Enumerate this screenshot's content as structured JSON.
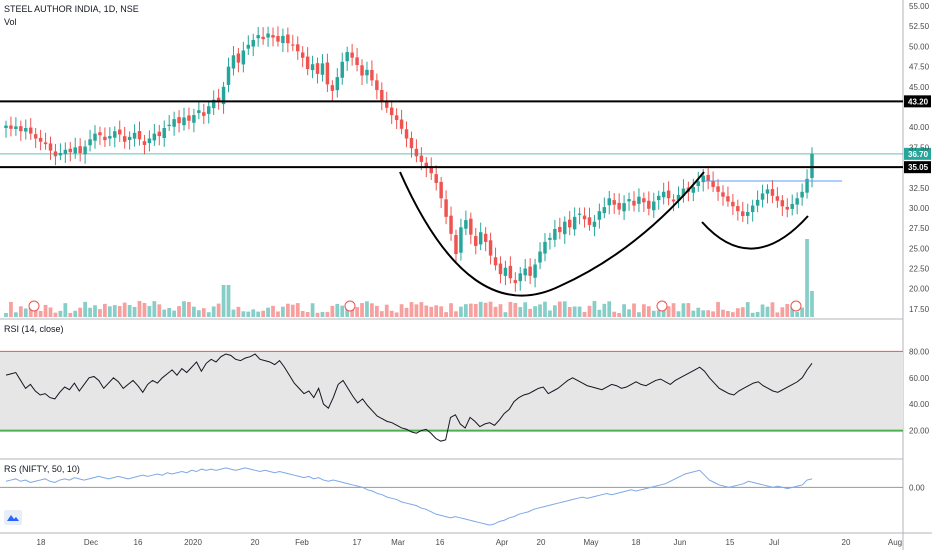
{
  "header": {
    "title": "STEEL AUTHOR INDIA, 1D, NSE",
    "vol_label": "Vol"
  },
  "chart_data": {
    "type": "candlestick",
    "price_axis": {
      "range": [
        16.5,
        55.5
      ],
      "ticks": [
        "55.00",
        "52.50",
        "50.00",
        "47.50",
        "45.00",
        "42.50",
        "40.00",
        "37.50",
        "35.00",
        "32.50",
        "30.00",
        "27.50",
        "25.00",
        "22.50",
        "20.00",
        "17.50"
      ],
      "tick_values": [
        55,
        52.5,
        50,
        47.5,
        45,
        42.5,
        40,
        37.5,
        35,
        32.5,
        30,
        27.5,
        25,
        22.5,
        20,
        17.5
      ]
    },
    "x_axis_ticks": [
      "18",
      "Dec",
      "16",
      "2020",
      "20",
      "Feb",
      "17",
      "Mar",
      "16",
      "Apr",
      "20",
      "May",
      "18",
      "Jun",
      "15",
      "Jul",
      "20",
      "Aug"
    ],
    "horizontal_levels": [
      {
        "value": 43.2,
        "label": "43.20",
        "color": "#000000"
      },
      {
        "value": 35.05,
        "label": "35.05",
        "color": "#000000"
      }
    ],
    "last_price": {
      "value": 36.7,
      "label": "36.70",
      "color": "#26a69a"
    },
    "closes": [
      40.2,
      39.8,
      40.1,
      39.5,
      39.9,
      39.2,
      38.6,
      38.2,
      37.9,
      37.1,
      36.4,
      36.8,
      37.2,
      36.9,
      37.5,
      36.8,
      37.6,
      38.5,
      39.2,
      39.0,
      38.4,
      38.9,
      39.5,
      39.1,
      38.2,
      38.8,
      39.3,
      38.5,
      37.8,
      38.6,
      39.2,
      38.9,
      39.9,
      40.3,
      41.0,
      40.5,
      41.2,
      40.8,
      41.5,
      42.1,
      41.4,
      42.6,
      43.4,
      43.1,
      45.0,
      47.5,
      48.9,
      48.0,
      49.5,
      50.2,
      50.8,
      51.4,
      50.9,
      51.6,
      51.1,
      50.6,
      51.3,
      50.4,
      50.1,
      49.4,
      48.6,
      47.2,
      47.8,
      46.6,
      47.9,
      45.3,
      44.5,
      46.2,
      48.1,
      49.3,
      48.6,
      47.7,
      46.4,
      47.1,
      45.8,
      44.6,
      43.2,
      42.4,
      41.5,
      40.9,
      39.8,
      38.6,
      37.4,
      36.4,
      35.7,
      35.0,
      34.3,
      33.1,
      31.2,
      28.9,
      26.8,
      24.3,
      27.6,
      28.5,
      26.7,
      25.3,
      27.0,
      25.8,
      24.1,
      22.9,
      21.8,
      22.6,
      21.3,
      20.7,
      21.9,
      22.5,
      21.6,
      23.0,
      24.6,
      25.8,
      26.3,
      27.4,
      27.0,
      28.3,
      27.6,
      28.9,
      29.3,
      28.6,
      27.9,
      28.3,
      29.6,
      30.1,
      31.2,
      30.4,
      29.8,
      30.6,
      31.1,
      30.3,
      31.4,
      30.7,
      29.9,
      30.8,
      31.5,
      32.0,
      31.2,
      30.8,
      31.6,
      32.4,
      32.0,
      32.6,
      33.3,
      34.0,
      33.4,
      32.6,
      32.0,
      31.4,
      30.8,
      30.2,
      29.6,
      29.0,
      29.5,
      30.3,
      31.0,
      31.8,
      32.3,
      31.5,
      30.9,
      30.2,
      29.8,
      30.5,
      31.2,
      32.0,
      33.6,
      36.7
    ],
    "rsi": {
      "label": "RSI (14, close)",
      "upper": 80,
      "lower": 20,
      "ticks": [
        "80.00",
        "60.00",
        "40.00",
        "20.00"
      ],
      "tick_values": [
        80,
        60,
        40,
        20
      ],
      "values": [
        62,
        63,
        64,
        58,
        52,
        55,
        50,
        47,
        48,
        45,
        44,
        49,
        53,
        51,
        56,
        50,
        55,
        60,
        61,
        58,
        52,
        56,
        60,
        57,
        52,
        55,
        58,
        54,
        49,
        55,
        58,
        56,
        60,
        63,
        66,
        62,
        67,
        64,
        68,
        72,
        65,
        71,
        74,
        72,
        76,
        78,
        77,
        74,
        73,
        75,
        76,
        78,
        74,
        73,
        72,
        70,
        73,
        68,
        62,
        56,
        52,
        48,
        50,
        45,
        52,
        40,
        37,
        45,
        55,
        58,
        52,
        46,
        41,
        44,
        39,
        35,
        31,
        29,
        27,
        26,
        24,
        22,
        21,
        19,
        18,
        20,
        21,
        18,
        14,
        12,
        13,
        30,
        32,
        25,
        22,
        30,
        27,
        23,
        25,
        26,
        24,
        28,
        33,
        36,
        42,
        45,
        47,
        48,
        50,
        52,
        53,
        48,
        50,
        52,
        55,
        58,
        60,
        58,
        56,
        54,
        53,
        52,
        51,
        53,
        55,
        54,
        52,
        53,
        55,
        57,
        55,
        54,
        56,
        58,
        59,
        57,
        55,
        58,
        60,
        62,
        64,
        66,
        68,
        65,
        60,
        56,
        52,
        50,
        48,
        47,
        50,
        52,
        54,
        56,
        57,
        54,
        52,
        50,
        49,
        51,
        53,
        55,
        57,
        60,
        66,
        71
      ]
    },
    "rs": {
      "label": "RS (NIFTY, 50, 10)",
      "zero_line": 0,
      "ticks": [
        "0.00"
      ],
      "tick_values": [
        0
      ],
      "range": [
        -0.35,
        0.2
      ],
      "values": [
        0.05,
        0.06,
        0.07,
        0.05,
        0.06,
        0.04,
        0.05,
        0.06,
        0.07,
        0.05,
        0.04,
        0.06,
        0.07,
        0.06,
        0.08,
        0.07,
        0.06,
        0.07,
        0.08,
        0.09,
        0.08,
        0.07,
        0.08,
        0.09,
        0.08,
        0.07,
        0.08,
        0.09,
        0.1,
        0.09,
        0.1,
        0.11,
        0.1,
        0.12,
        0.11,
        0.12,
        0.13,
        0.12,
        0.14,
        0.13,
        0.15,
        0.14,
        0.15,
        0.14,
        0.15,
        0.16,
        0.15,
        0.14,
        0.15,
        0.16,
        0.15,
        0.14,
        0.13,
        0.14,
        0.13,
        0.12,
        0.13,
        0.12,
        0.11,
        0.1,
        0.09,
        0.08,
        0.09,
        0.07,
        0.08,
        0.06,
        0.05,
        0.06,
        0.05,
        0.04,
        0.03,
        0.02,
        0.01,
        0.0,
        -0.02,
        -0.03,
        -0.05,
        -0.06,
        -0.08,
        -0.09,
        -0.1,
        -0.12,
        -0.13,
        -0.14,
        -0.15,
        -0.17,
        -0.18,
        -0.2,
        -0.22,
        -0.23,
        -0.24,
        -0.25,
        -0.24,
        -0.25,
        -0.26,
        -0.27,
        -0.28,
        -0.29,
        -0.3,
        -0.31,
        -0.3,
        -0.28,
        -0.27,
        -0.25,
        -0.24,
        -0.22,
        -0.21,
        -0.2,
        -0.18,
        -0.17,
        -0.16,
        -0.15,
        -0.14,
        -0.13,
        -0.12,
        -0.11,
        -0.1,
        -0.09,
        -0.08,
        -0.09,
        -0.08,
        -0.07,
        -0.06,
        -0.05,
        -0.06,
        -0.05,
        -0.04,
        -0.03,
        -0.02,
        -0.03,
        -0.02,
        -0.01,
        0.0,
        0.01,
        0.02,
        0.03,
        0.05,
        0.07,
        0.09,
        0.11,
        0.12,
        0.13,
        0.14,
        0.1,
        0.06,
        0.04,
        0.02,
        0.01,
        0.0,
        0.01,
        0.02,
        0.03,
        0.05,
        0.04,
        0.03,
        0.02,
        0.01,
        0.0,
        0.01,
        0.0,
        -0.01,
        0.0,
        0.01,
        0.02,
        0.06,
        0.07
      ]
    }
  },
  "colors": {
    "up": "#26a69a",
    "down": "#ef5350",
    "rsi_band": "#e6e6e6",
    "rsi_upper": "#ef5350",
    "rsi_lower": "#4caf50",
    "rs_line": "#7ea8e6",
    "grid": "#f0f3fa"
  }
}
